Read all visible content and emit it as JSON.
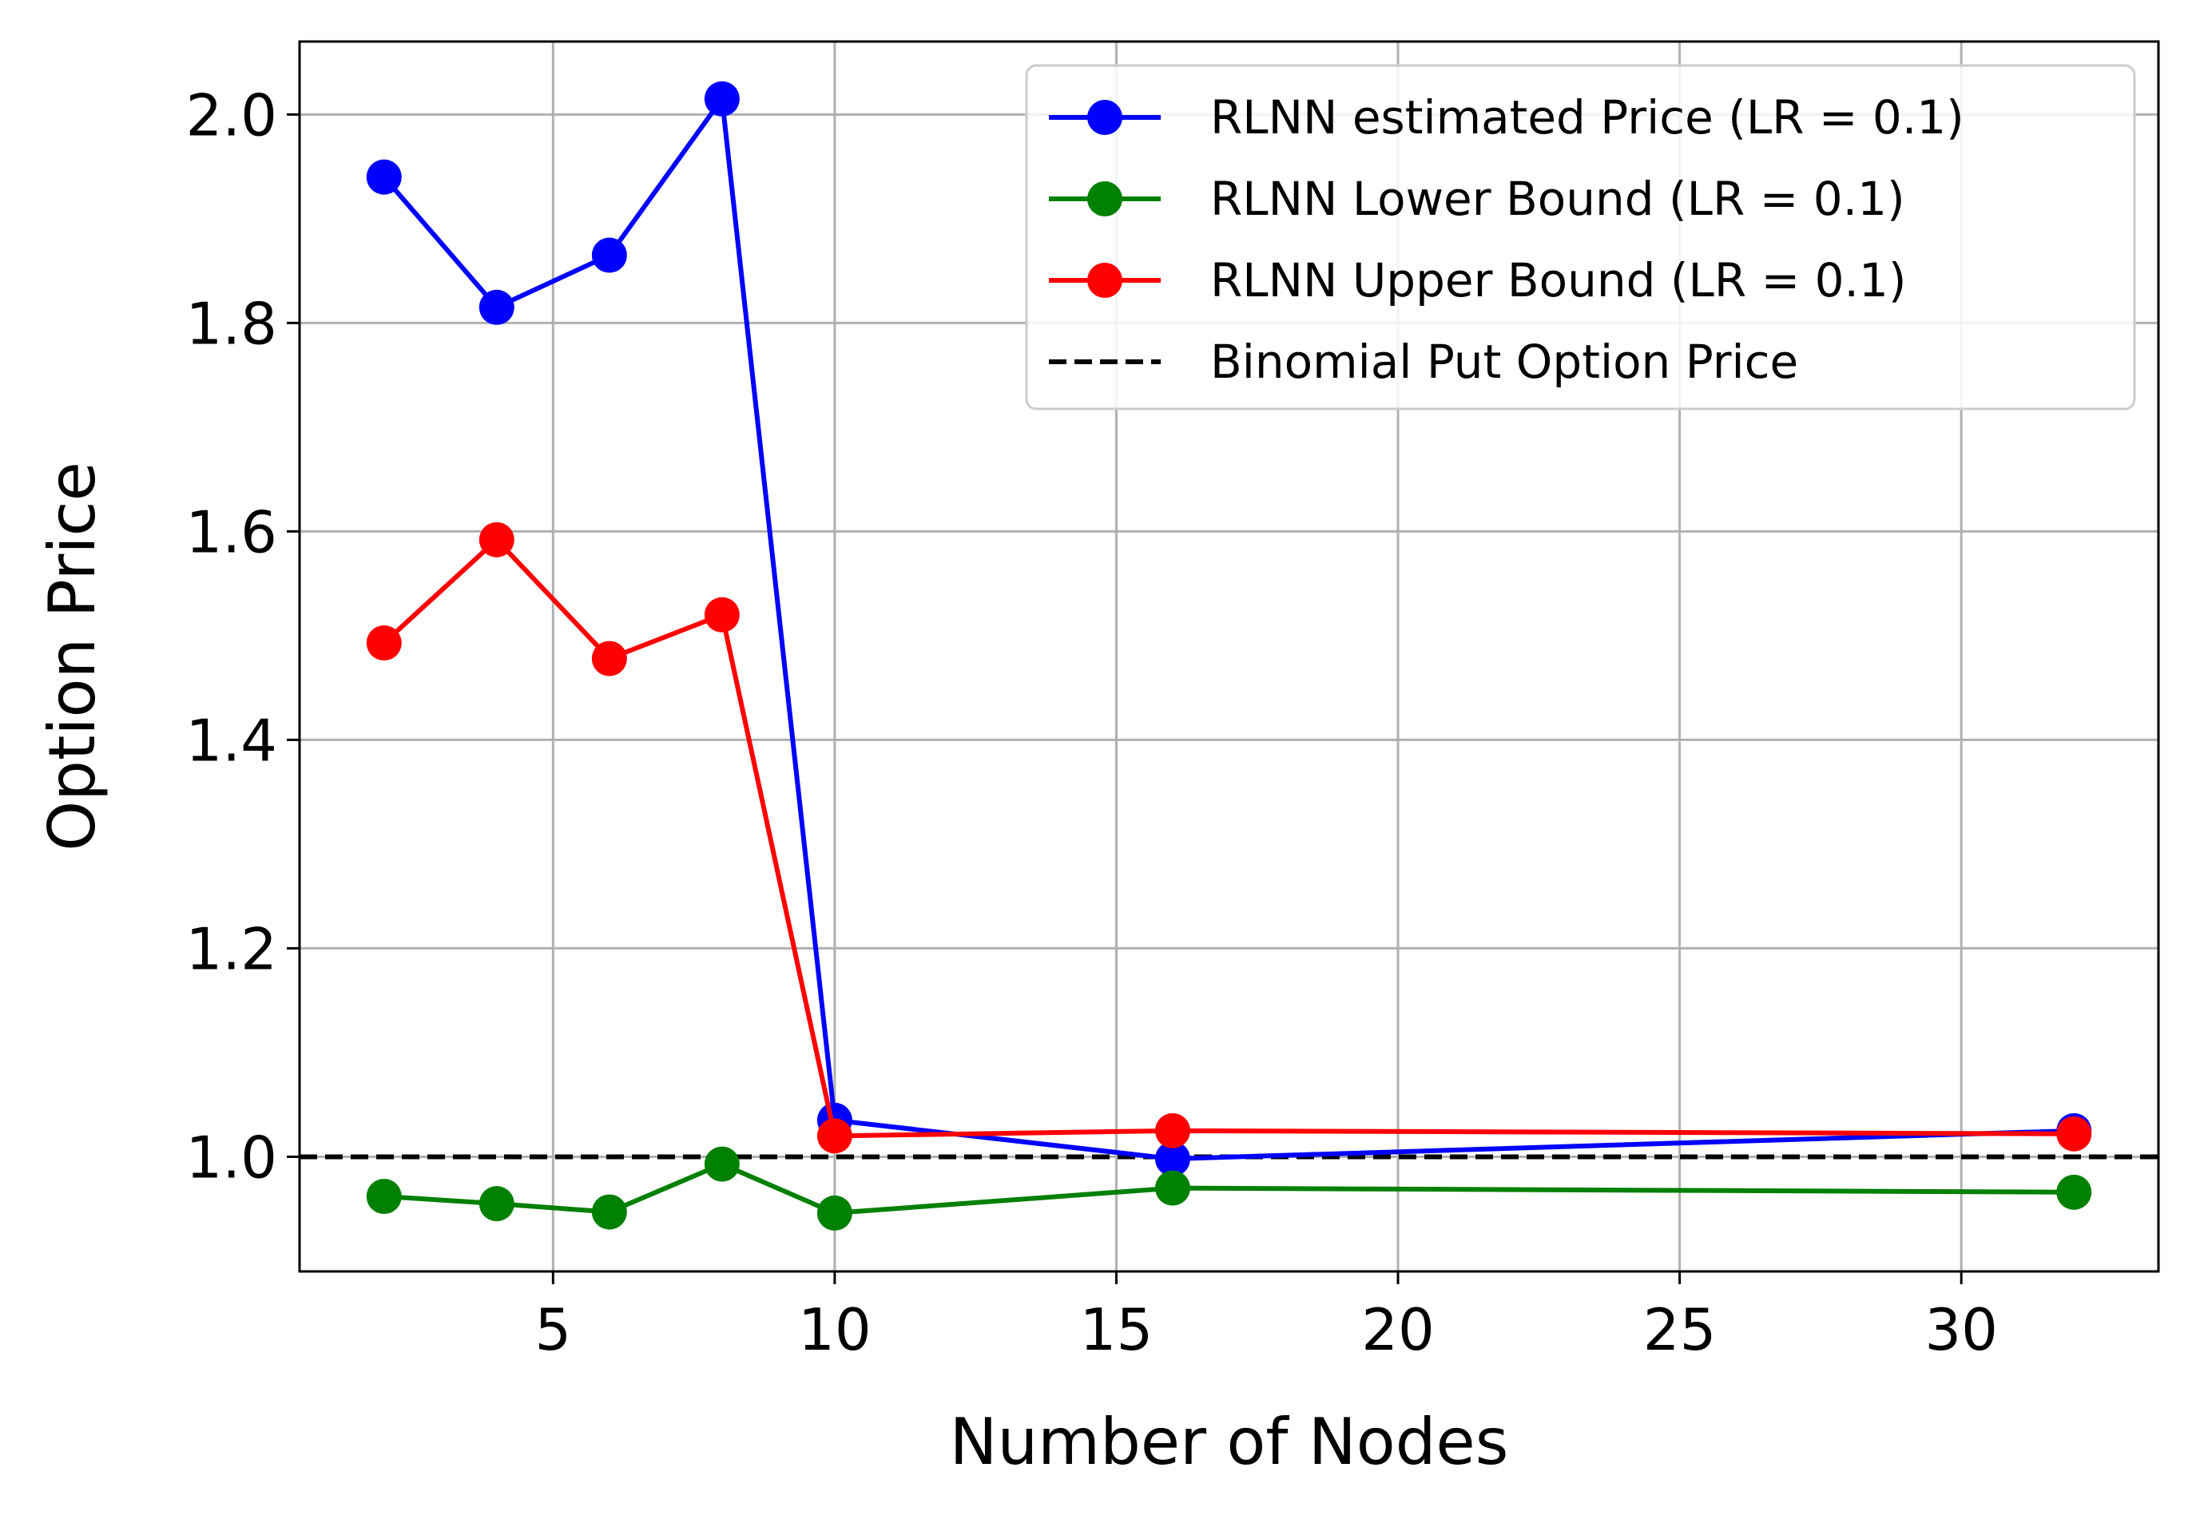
{
  "chart_data": {
    "type": "line",
    "xlabel": "Number of Nodes",
    "ylabel": "Option Price",
    "xlim": [
      0.5,
      33.5
    ],
    "ylim": [
      0.89,
      2.07
    ],
    "x_ticks": [
      5,
      10,
      15,
      20,
      25,
      30
    ],
    "y_ticks": [
      1.0,
      1.2,
      1.4,
      1.6,
      1.8,
      2.0
    ],
    "x_tick_labels": [
      "5",
      "10",
      "15",
      "20",
      "25",
      "30"
    ],
    "y_tick_labels": [
      "1.0",
      "1.2",
      "1.4",
      "1.6",
      "1.8",
      "2.0"
    ],
    "grid": true,
    "legend_position": "top-right",
    "series": [
      {
        "name": "RLNN estimated Price (LR = 0.1)",
        "color": "#0000ff",
        "marker": "circle",
        "x": [
          2,
          4,
          6,
          8,
          10,
          16,
          32
        ],
        "y": [
          1.94,
          1.815,
          1.865,
          2.015,
          1.035,
          0.998,
          1.025
        ]
      },
      {
        "name": "RLNN Lower Bound (LR = 0.1)",
        "color": "#008000",
        "marker": "circle",
        "x": [
          2,
          4,
          6,
          8,
          10,
          16,
          32
        ],
        "y": [
          0.962,
          0.955,
          0.947,
          0.993,
          0.946,
          0.97,
          0.966
        ]
      },
      {
        "name": "RLNN Upper Bound (LR = 0.1)",
        "color": "#ff0000",
        "marker": "circle",
        "x": [
          2,
          4,
          6,
          8,
          10,
          16,
          32
        ],
        "y": [
          1.493,
          1.592,
          1.478,
          1.52,
          1.02,
          1.025,
          1.022
        ]
      }
    ],
    "reference_lines": [
      {
        "name": "Binomial Put Option Price",
        "color": "#000000",
        "style": "dashed",
        "y": 1.0
      }
    ]
  }
}
